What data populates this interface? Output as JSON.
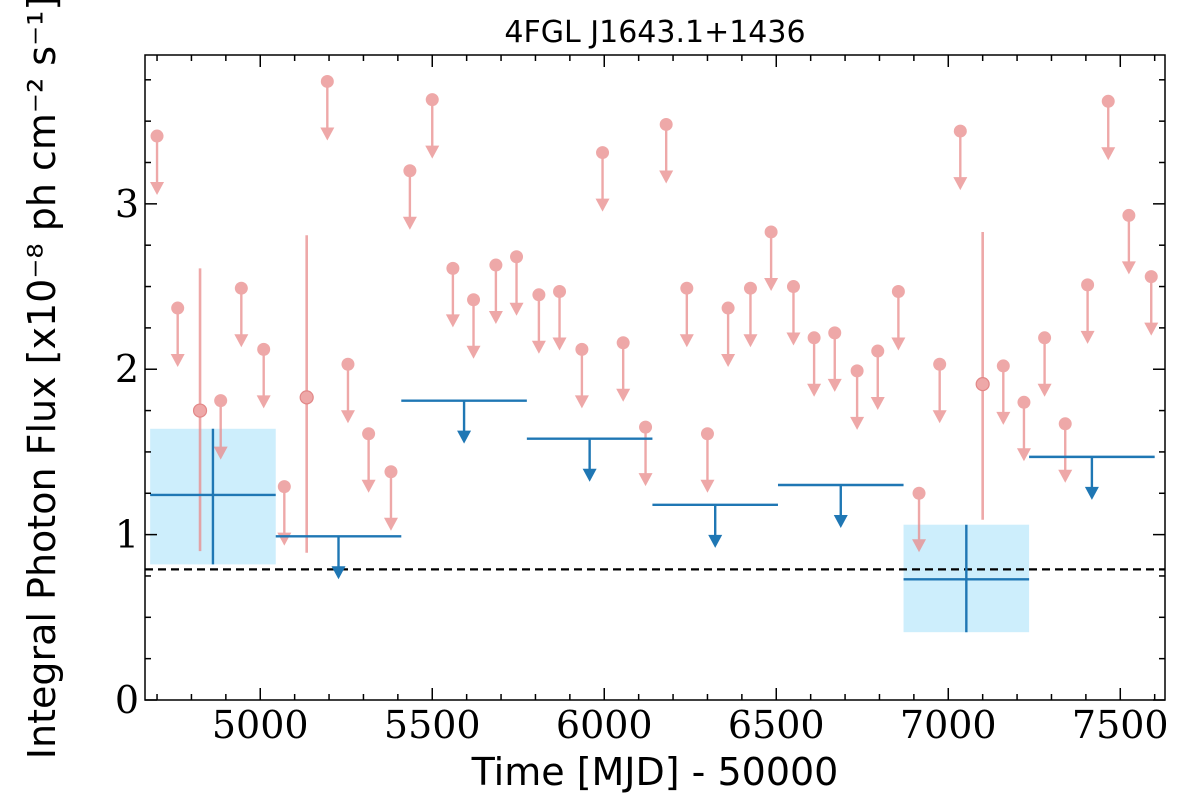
{
  "chart_data": {
    "type": "scatter",
    "title": "4FGL J1643.1+1436",
    "xlabel": "Time [MJD] - 50000",
    "ylabel": "Integral Photon Flux [x10⁻⁸ ph cm⁻² s⁻¹]",
    "xlim": [
      4665,
      7630
    ],
    "ylim": [
      0,
      3.9
    ],
    "x_ticks": [
      5000,
      5500,
      6000,
      6500,
      7000,
      7500
    ],
    "x_tick_labels": [
      "5000",
      "5500",
      "6000",
      "6500",
      "7000",
      "7500"
    ],
    "y_ticks": [
      0,
      1,
      2,
      3
    ],
    "y_tick_labels": [
      "0",
      "1",
      "2",
      "3"
    ],
    "grid": false,
    "legend": "none",
    "reference_line": {
      "y": 0.79,
      "style": "dashed",
      "color": "#000000"
    },
    "colors": {
      "short_bins": "#e98b8b",
      "long_bins": "#1f77b4",
      "error_box": "#cdeefc"
    },
    "series": [
      {
        "style": "pink",
        "upper_limits": [
          [
            4700,
            3.41
          ],
          [
            4760,
            2.37
          ],
          [
            4885,
            1.81
          ],
          [
            4945,
            2.49
          ],
          [
            5010,
            2.12
          ],
          [
            5070,
            1.29
          ],
          [
            5195,
            3.74
          ],
          [
            5255,
            2.03
          ],
          [
            5315,
            1.61
          ],
          [
            5380,
            1.38
          ],
          [
            5435,
            3.2
          ],
          [
            5500,
            3.63
          ],
          [
            5560,
            2.61
          ],
          [
            5620,
            2.42
          ],
          [
            5685,
            2.63
          ],
          [
            5745,
            2.68
          ],
          [
            5810,
            2.45
          ],
          [
            5870,
            2.47
          ],
          [
            5935,
            2.12
          ],
          [
            5995,
            3.31
          ],
          [
            6055,
            2.16
          ],
          [
            6120,
            1.65
          ],
          [
            6180,
            3.48
          ],
          [
            6240,
            2.49
          ],
          [
            6300,
            1.61
          ],
          [
            6360,
            2.37
          ],
          [
            6425,
            2.49
          ],
          [
            6485,
            2.83
          ],
          [
            6550,
            2.5
          ],
          [
            6610,
            2.19
          ],
          [
            6670,
            2.22
          ],
          [
            6735,
            1.99
          ],
          [
            6795,
            2.11
          ],
          [
            6855,
            2.47
          ],
          [
            6915,
            1.25
          ],
          [
            6975,
            2.03
          ],
          [
            7035,
            3.44
          ],
          [
            7160,
            2.02
          ],
          [
            7220,
            1.8
          ],
          [
            7280,
            2.19
          ],
          [
            7340,
            1.67
          ],
          [
            7405,
            2.51
          ],
          [
            7465,
            3.62
          ],
          [
            7525,
            2.93
          ],
          [
            7590,
            2.56
          ]
        ],
        "detections": [
          {
            "x": 4825,
            "y": 1.75,
            "yerr": [
              0.9,
              2.61
            ]
          },
          {
            "x": 5135,
            "y": 1.83,
            "yerr": [
              0.89,
              2.81
            ]
          },
          {
            "x": 7100,
            "y": 1.91,
            "yerr": [
              1.09,
              2.83
            ]
          }
        ]
      },
      {
        "style": "blue",
        "upper_limits": [
          {
            "x0": 5045,
            "x1": 5410,
            "y": 0.99
          },
          {
            "x0": 5410,
            "x1": 5775,
            "y": 1.81
          },
          {
            "x0": 5775,
            "x1": 6140,
            "y": 1.58
          },
          {
            "x0": 6140,
            "x1": 6505,
            "y": 1.18
          },
          {
            "x0": 6505,
            "x1": 6870,
            "y": 1.3
          },
          {
            "x0": 7235,
            "x1": 7600,
            "y": 1.47
          }
        ],
        "detections": [
          {
            "x0": 4680,
            "x1": 5045,
            "y": 1.24,
            "yerr": [
              0.82,
              1.64
            ]
          },
          {
            "x0": 6870,
            "x1": 7235,
            "y": 0.73,
            "yerr": [
              0.41,
              1.06
            ]
          }
        ]
      }
    ]
  }
}
